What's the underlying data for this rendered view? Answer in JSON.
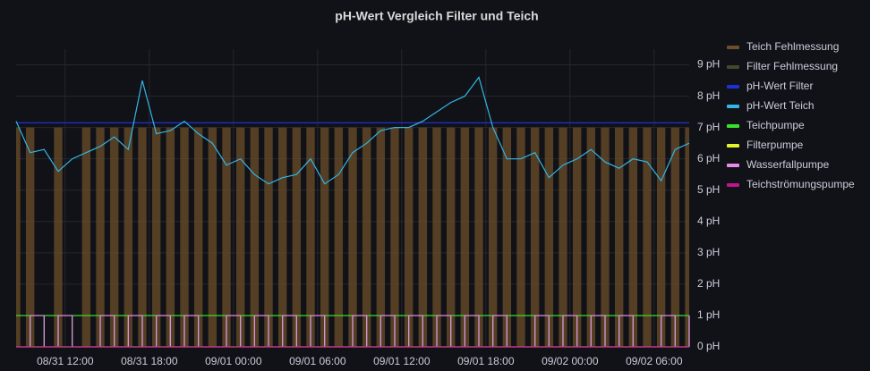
{
  "chart_data": {
    "type": "timeseries",
    "title": "pH-Wert Vergleich Filter und Teich",
    "x": [
      "08/31 08:30",
      "08/31 09:30",
      "08/31 10:30",
      "08/31 11:30",
      "08/31 12:30",
      "08/31 13:30",
      "08/31 14:30",
      "08/31 15:30",
      "08/31 16:30",
      "08/31 17:30",
      "08/31 18:30",
      "08/31 19:30",
      "08/31 20:30",
      "08/31 21:30",
      "08/31 22:30",
      "08/31 23:30",
      "09/01 00:30",
      "09/01 01:30",
      "09/01 02:30",
      "09/01 03:30",
      "09/01 04:30",
      "09/01 05:30",
      "09/01 06:30",
      "09/01 07:30",
      "09/01 08:30",
      "09/01 09:30",
      "09/01 10:30",
      "09/01 11:30",
      "09/01 12:30",
      "09/01 13:30",
      "09/01 14:30",
      "09/01 15:30",
      "09/01 16:30",
      "09/01 17:30",
      "09/01 18:30",
      "09/01 19:30",
      "09/01 20:30",
      "09/01 21:30",
      "09/01 22:30",
      "09/01 23:30",
      "09/02 00:30",
      "09/02 01:30",
      "09/02 02:30",
      "09/02 03:30",
      "09/02 04:30",
      "09/02 05:30",
      "09/02 06:30",
      "09/02 07:30",
      "09/02 08:30"
    ],
    "xlim": [
      "08/31 08:30",
      "09/02 08:30"
    ],
    "xticks": [
      "08/31 12:00",
      "08/31 18:00",
      "09/01 00:00",
      "09/01 06:00",
      "09/01 12:00",
      "09/01 18:00",
      "09/02 00:00",
      "09/02 06:00"
    ],
    "ylim": [
      0,
      9.5
    ],
    "yticks": [
      {
        "value": 0,
        "label": "0 pH"
      },
      {
        "value": 1,
        "label": "1 pH"
      },
      {
        "value": 2,
        "label": "2 pH"
      },
      {
        "value": 3,
        "label": "3 pH"
      },
      {
        "value": 4,
        "label": "4 pH"
      },
      {
        "value": 5,
        "label": "5 pH"
      },
      {
        "value": 6,
        "label": "6 pH"
      },
      {
        "value": 7,
        "label": "7 pH"
      },
      {
        "value": 8,
        "label": "8 pH"
      },
      {
        "value": 9,
        "label": "9 pH"
      }
    ],
    "grid": true,
    "legend": "right",
    "series": [
      {
        "name": "Teich Fehlmessung",
        "color": "#6b4e2a",
        "style": "bars",
        "values": [
          7,
          7,
          0,
          7,
          0,
          7,
          7,
          7,
          7,
          7,
          7,
          7,
          7,
          7,
          7,
          7,
          7,
          7,
          7,
          7,
          7,
          7,
          7,
          7,
          7,
          7,
          7,
          7,
          7,
          7,
          7,
          7,
          7,
          7,
          7,
          7,
          7,
          7,
          7,
          7,
          7,
          7,
          7,
          7,
          7,
          7,
          7,
          7,
          7
        ]
      },
      {
        "name": "Filter Fehlmessung",
        "color": "#3f4a2e",
        "style": "bars",
        "values": [
          0,
          0,
          0,
          0,
          0,
          0,
          0,
          0,
          0,
          0,
          0,
          0,
          0,
          0,
          0,
          0,
          0,
          0,
          0,
          0,
          0,
          0,
          0,
          0,
          0,
          0,
          0,
          0,
          0,
          0,
          0,
          0,
          0,
          0,
          0,
          0,
          0,
          0,
          0,
          0,
          0,
          0,
          0,
          0,
          0,
          0,
          0,
          0,
          0
        ]
      },
      {
        "name": "pH-Wert Filter",
        "color": "#1f2fd6",
        "style": "line",
        "values": [
          7.15,
          7.15,
          7.15,
          7.15,
          7.15,
          7.15,
          7.15,
          7.15,
          7.15,
          7.15,
          7.15,
          7.15,
          7.15,
          7.15,
          7.15,
          7.15,
          7.15,
          7.15,
          7.15,
          7.15,
          7.15,
          7.15,
          7.15,
          7.15,
          7.15,
          7.15,
          7.15,
          7.15,
          7.15,
          7.15,
          7.15,
          7.15,
          7.15,
          7.15,
          7.15,
          7.15,
          7.15,
          7.15,
          7.15,
          7.15,
          7.15,
          7.15,
          7.15,
          7.15,
          7.15,
          7.15,
          7.15,
          7.15,
          7.15
        ]
      },
      {
        "name": "pH-Wert Teich",
        "color": "#33b5e5",
        "style": "line",
        "values": [
          7.2,
          6.2,
          6.3,
          5.6,
          6.0,
          6.2,
          6.4,
          6.7,
          6.3,
          8.5,
          6.8,
          6.9,
          7.2,
          6.8,
          6.5,
          5.8,
          6.0,
          5.5,
          5.2,
          5.4,
          5.5,
          6.0,
          5.2,
          5.5,
          6.2,
          6.5,
          6.9,
          7.0,
          7.0,
          7.2,
          7.5,
          7.8,
          8.0,
          8.6,
          7.0,
          6.0,
          6.0,
          6.2,
          5.4,
          5.8,
          6.0,
          6.3,
          5.9,
          5.7,
          6.0,
          5.9,
          5.3,
          6.3,
          6.5
        ]
      },
      {
        "name": "Teichpumpe",
        "color": "#37e22c",
        "style": "step",
        "values": [
          1,
          0,
          1,
          0,
          1,
          1,
          0,
          1,
          0,
          1,
          0,
          1,
          0,
          1,
          1,
          0,
          1,
          0,
          1,
          0,
          1,
          0,
          1,
          1,
          0,
          1,
          0,
          1,
          0,
          1,
          0,
          1,
          0,
          1,
          0,
          1,
          1,
          0,
          1,
          0,
          1,
          0,
          1,
          0,
          1,
          1,
          0,
          1,
          0
        ]
      },
      {
        "name": "Filterpumpe",
        "color": "#e0f52c",
        "style": "step",
        "values": [
          0,
          0,
          0,
          0,
          0,
          0,
          0,
          0,
          0,
          0,
          0,
          0,
          0,
          0,
          0,
          0,
          0,
          0,
          0,
          0,
          0,
          0,
          0,
          0,
          0,
          0,
          0,
          0,
          0,
          0,
          0,
          0,
          0,
          0,
          0,
          0,
          0,
          0,
          0,
          0,
          0,
          0,
          0,
          0,
          0,
          0,
          0,
          0,
          0
        ]
      },
      {
        "name": "Wasserfallpumpe",
        "color": "#e88ce8",
        "style": "step",
        "values": [
          0,
          1,
          0,
          1,
          0,
          0,
          1,
          0,
          1,
          0,
          1,
          0,
          1,
          0,
          0,
          1,
          0,
          1,
          0,
          1,
          0,
          1,
          0,
          0,
          1,
          0,
          1,
          0,
          1,
          0,
          1,
          0,
          1,
          0,
          1,
          0,
          0,
          1,
          0,
          1,
          0,
          1,
          0,
          1,
          0,
          0,
          1,
          0,
          1
        ]
      },
      {
        "name": "Teichströmungspumpe",
        "color": "#c0168c",
        "style": "step",
        "values": [
          0,
          0,
          0,
          0,
          0,
          0,
          0,
          0,
          0,
          0,
          0,
          0,
          0,
          0,
          0,
          0,
          0,
          0,
          0,
          0,
          0,
          0,
          0,
          0,
          0,
          0,
          0,
          0,
          0,
          0,
          0,
          0,
          0,
          0,
          0,
          0,
          0,
          0,
          0,
          0,
          0,
          0,
          0,
          0,
          0,
          0,
          0,
          0,
          0
        ]
      }
    ]
  }
}
